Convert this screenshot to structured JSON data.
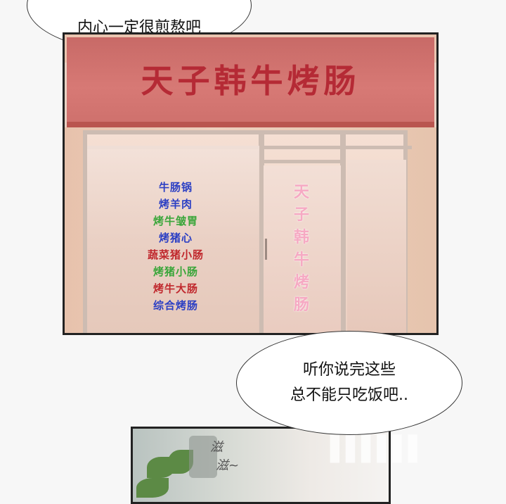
{
  "bubble_top": {
    "text": "内心一定很煎熬吧"
  },
  "shop": {
    "sign": "天子韩牛烤肠",
    "door_text": [
      "天",
      "子",
      "韩",
      "牛",
      "烤",
      "肠"
    ],
    "menu": [
      {
        "label": "牛肠锅",
        "color": "#2b3fc4"
      },
      {
        "label": "烤羊肉",
        "color": "#2b3fc4"
      },
      {
        "label": "烤牛皱胃",
        "color": "#3aa63a"
      },
      {
        "label": "烤猪心",
        "color": "#2b3fc4"
      },
      {
        "label": "蔬菜猪小肠",
        "color": "#c0282d"
      },
      {
        "label": "烤猪小肠",
        "color": "#3aa63a"
      },
      {
        "label": "烤牛大肠",
        "color": "#c0282d"
      },
      {
        "label": "综合烤肠",
        "color": "#2b3fc4"
      }
    ]
  },
  "bubble_bottom": {
    "line1": "听你说完这些",
    "line2": "总不能只吃饭吧.."
  },
  "sfx": {
    "line1": "滋",
    "line2": "滋~"
  }
}
